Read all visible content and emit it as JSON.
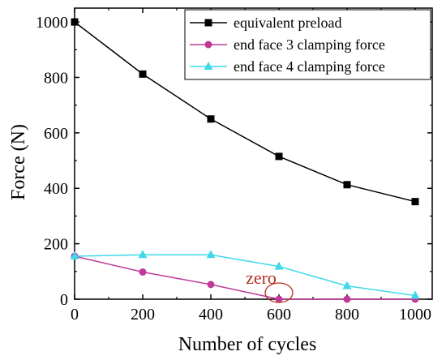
{
  "chart_data": {
    "type": "line",
    "xlabel": "Number of cycles",
    "ylabel": "Force (N)",
    "xlim": [
      0,
      1050
    ],
    "ylim": [
      0,
      1050
    ],
    "xticks": [
      0,
      200,
      400,
      600,
      800,
      1000
    ],
    "yticks": [
      0,
      200,
      400,
      600,
      800,
      1000
    ],
    "x": [
      0,
      200,
      400,
      600,
      800,
      1000
    ],
    "series": [
      {
        "name": "equivalent preload",
        "color": "#000000",
        "marker": "square",
        "values": [
          1000,
          812,
          650,
          515,
          413,
          352
        ]
      },
      {
        "name": "end face 3 clamping force",
        "color": "#c0399a",
        "marker": "circle",
        "values": [
          155,
          98,
          53,
          0,
          0,
          0
        ]
      },
      {
        "name": "end face 4 clamping force",
        "color": "#3fd9e8",
        "marker": "triangle",
        "values": [
          155,
          160,
          160,
          118,
          48,
          13
        ]
      }
    ],
    "annotations": [
      {
        "text": "zero",
        "color": "#b5301f",
        "x": 600,
        "y": 0
      }
    ],
    "legend": "top-right",
    "grid": false
  }
}
